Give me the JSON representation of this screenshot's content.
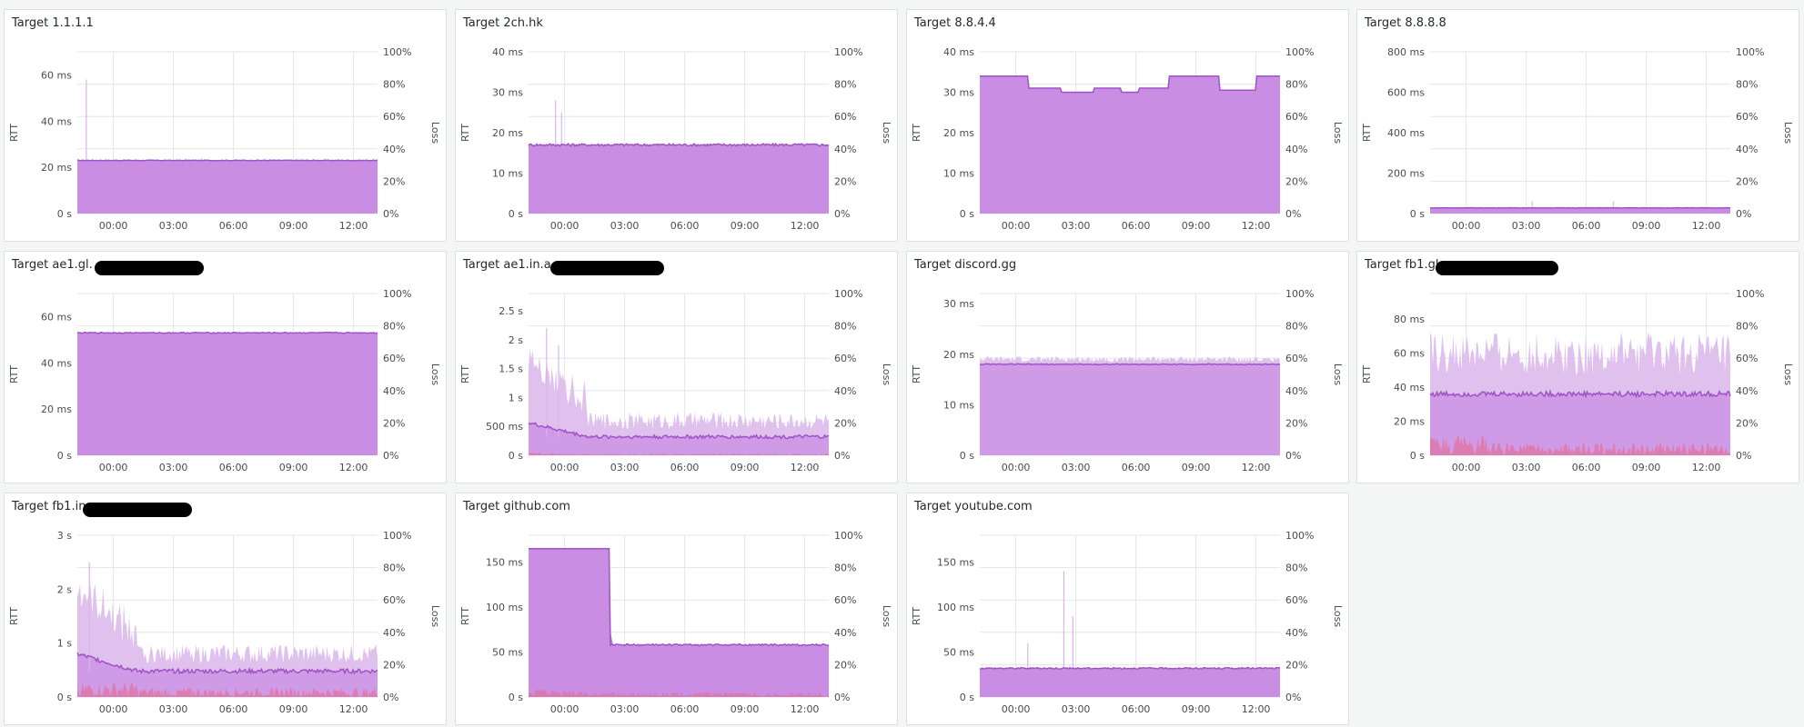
{
  "colors": {
    "rtt_fill": "#c98de3",
    "rtt_line": "#a052c9",
    "rtt_band": "#e0c1ee",
    "loss_fill": "#e26f9a",
    "grid": "#e4e5e8"
  },
  "axis_titles": {
    "left": "RTT",
    "right": "Loss"
  },
  "loss_ticks": [
    "0%",
    "20%",
    "40%",
    "60%",
    "80%",
    "100%"
  ],
  "x_ticks": [
    "00:00",
    "03:00",
    "06:00",
    "09:00",
    "12:00"
  ],
  "panels": [
    {
      "title": "Target 1.1.1.1",
      "y_ticks": [
        "0 s",
        "20 ms",
        "40 ms",
        "60 ms"
      ],
      "y_max_ms": 70,
      "level_ms": 23,
      "variation": 0.15,
      "spike_ms": [
        {
          "x": 0.03,
          "v": 58
        }
      ],
      "jitter_band": 0,
      "loss_pct": 0,
      "redacted": false
    },
    {
      "title": "Target 2ch.hk",
      "y_ticks": [
        "0 s",
        "10 ms",
        "20 ms",
        "30 ms",
        "40 ms"
      ],
      "y_max_ms": 40,
      "level_ms": 17,
      "variation": 0.3,
      "spike_ms": [
        {
          "x": 0.09,
          "v": 28
        },
        {
          "x": 0.11,
          "v": 25
        }
      ],
      "jitter_band": 0,
      "loss_pct": 0,
      "redacted": false
    },
    {
      "title": "Target 8.8.4.4",
      "y_ticks": [
        "0 s",
        "10 ms",
        "20 ms",
        "30 ms",
        "40 ms"
      ],
      "y_max_ms": 40,
      "level_ms": 34,
      "variation": 0,
      "steps_ms": [
        [
          0,
          34
        ],
        [
          0.16,
          31
        ],
        [
          0.27,
          30
        ],
        [
          0.38,
          31
        ],
        [
          0.47,
          30
        ],
        [
          0.53,
          31
        ],
        [
          0.63,
          34
        ],
        [
          0.8,
          30.5
        ],
        [
          0.92,
          34
        ]
      ],
      "spike_ms": [],
      "jitter_band": 0,
      "loss_pct": 0,
      "redacted": false
    },
    {
      "title": "Target 8.8.8.8",
      "y_ticks": [
        "0 s",
        "200 ms",
        "400 ms",
        "600 ms",
        "800 ms"
      ],
      "y_max_ms": 800,
      "level_ms": 28,
      "variation": 1,
      "spike_ms": [
        {
          "x": 0.34,
          "v": 60
        },
        {
          "x": 0.61,
          "v": 60
        }
      ],
      "jitter_band": 0,
      "loss_pct": 0,
      "redacted": false
    },
    {
      "title": "Target ae1.gl.",
      "y_ticks": [
        "0 s",
        "20 ms",
        "40 ms",
        "60 ms"
      ],
      "y_max_ms": 70,
      "level_ms": 53,
      "variation": 0.2,
      "spike_ms": [],
      "jitter_band": 0,
      "loss_pct": 0,
      "redacted": true
    },
    {
      "title": "Target ae1.in.a",
      "y_ticks": [
        "0 s",
        "500 ms",
        "1 s",
        "1.5 s",
        "2 s",
        "2.5 s"
      ],
      "y_max_ms": 2800,
      "level_ms": 320,
      "variation": 30,
      "early_level_ms": 560,
      "early_band_ms": 1400,
      "spike_ms": [
        {
          "x": 0.06,
          "v": 2200
        },
        {
          "x": 0.1,
          "v": 1900
        }
      ],
      "jitter_band": 330,
      "loss_pct": 1,
      "redacted": true
    },
    {
      "title": "Target discord.gg",
      "y_ticks": [
        "0 s",
        "10 ms",
        "20 ms",
        "30 ms"
      ],
      "y_max_ms": 32,
      "level_ms": 18,
      "variation": 0.1,
      "spike_ms": [],
      "jitter_band": 1.2,
      "loss_pct": 0,
      "redacted": false
    },
    {
      "title": "Target fb1.gl.",
      "y_ticks": [
        "0 s",
        "20 ms",
        "40 ms",
        "60 ms",
        "80 ms"
      ],
      "y_max_ms": 95,
      "level_ms": 36,
      "variation": 1.5,
      "spike_ms": [],
      "jitter_band": 28,
      "loss_pct": 8,
      "redacted": true
    },
    {
      "title": "Target fb1.in.",
      "y_ticks": [
        "0 s",
        "1 s",
        "2 s",
        "3 s"
      ],
      "y_max_ms": 3000,
      "level_ms": 480,
      "variation": 40,
      "early_level_ms": 800,
      "early_band_ms": 1700,
      "spike_ms": [
        {
          "x": 0.04,
          "v": 2500
        }
      ],
      "jitter_band": 380,
      "loss_pct": 6,
      "redacted": true
    },
    {
      "title": "Target github.com",
      "y_ticks": [
        "0 s",
        "50 ms",
        "100 ms",
        "150 ms"
      ],
      "y_max_ms": 180,
      "level_ms": 58,
      "variation": 1,
      "github_block": true,
      "spike_ms": [],
      "jitter_band": 0,
      "loss_pct": 3,
      "redacted": false
    },
    {
      "title": "Target youtube.com",
      "y_ticks": [
        "0 s",
        "50 ms",
        "100 ms",
        "150 ms"
      ],
      "y_max_ms": 180,
      "level_ms": 32,
      "variation": 0.8,
      "spike_ms": [
        {
          "x": 0.28,
          "v": 140
        },
        {
          "x": 0.31,
          "v": 90
        },
        {
          "x": 0.16,
          "v": 60
        }
      ],
      "jitter_band": 0,
      "loss_pct": 0,
      "redacted": false
    }
  ]
}
